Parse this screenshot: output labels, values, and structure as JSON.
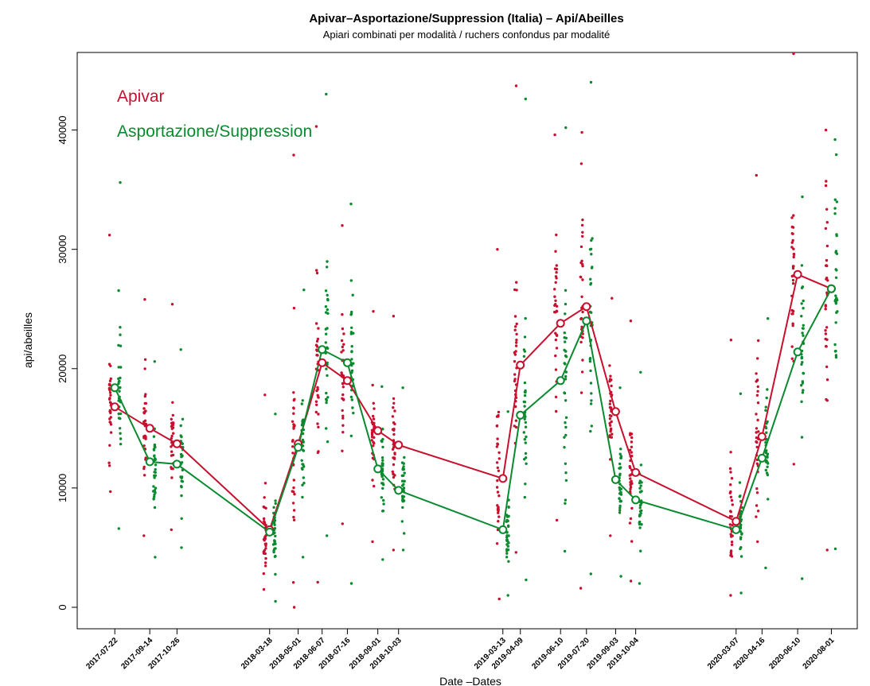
{
  "chart_data": {
    "type": "scatter",
    "title": "Apivar–Asportazione/Suppression (Italia) – Api/Abeilles",
    "subtitle": "Apiari combinati per modalità / ruchers confondus par modalité",
    "xlabel": "Date –Dates",
    "ylabel": "api/abeilles",
    "ylim": [
      -1800,
      46500
    ],
    "xlim": [
      "2017-05-25",
      "2020-09-10"
    ],
    "y_ticks": [
      0,
      10000,
      20000,
      30000,
      40000
    ],
    "grid": false,
    "legend_position": "top-left",
    "x_dates": [
      "2017-07-22",
      "2017-09-14",
      "2017-10-26",
      "2018-03-18",
      "2018-05-01",
      "2018-06-07",
      "2018-07-16",
      "2018-09-01",
      "2018-10-03",
      "2019-03-13",
      "2019-04-09",
      "2019-06-10",
      "2019-07-20",
      "2019-09-03",
      "2019-10-04",
      "2020-03-07",
      "2020-04-16",
      "2020-06-10",
      "2020-08-01"
    ],
    "series": [
      {
        "name": "Apivar",
        "color": "#c8102e",
        "means": [
          16800,
          15000,
          13700,
          6500,
          13700,
          20500,
          19000,
          14800,
          13600,
          10800,
          20300,
          23800,
          25200,
          16400,
          11300,
          7200,
          14300,
          27900,
          26700
        ],
        "min": [
          9700,
          6000,
          6500,
          1500,
          0,
          2100,
          7000,
          5500,
          4800,
          700,
          4600,
          7300,
          1600,
          6000,
          2200,
          1000,
          5500,
          12000,
          4800
        ],
        "max": [
          31200,
          25800,
          25400,
          17800,
          37900,
          40300,
          32000,
          24800,
          24400,
          30000,
          43700,
          39600,
          39800,
          25900,
          24000,
          22400,
          36200,
          46400,
          40000
        ]
      },
      {
        "name": "Asportazione/Suppression",
        "color": "#0a8a2e",
        "means": [
          18400,
          12200,
          12000,
          6300,
          13400,
          21600,
          20500,
          11600,
          9800,
          6500,
          16100,
          19000,
          24000,
          10700,
          9000,
          6500,
          12500,
          21400,
          26700
        ],
        "min": [
          6600,
          4200,
          5000,
          500,
          4200,
          6000,
          2000,
          4000,
          4800,
          1000,
          2300,
          4700,
          2800,
          2600,
          2000,
          1200,
          3300,
          2400,
          4900
        ],
        "max": [
          35600,
          20600,
          21600,
          16200,
          26600,
          43000,
          33800,
          18500,
          18400,
          16400,
          42600,
          40200,
          44000,
          18400,
          19700,
          17900,
          24200,
          34400,
          39200
        ]
      }
    ]
  }
}
